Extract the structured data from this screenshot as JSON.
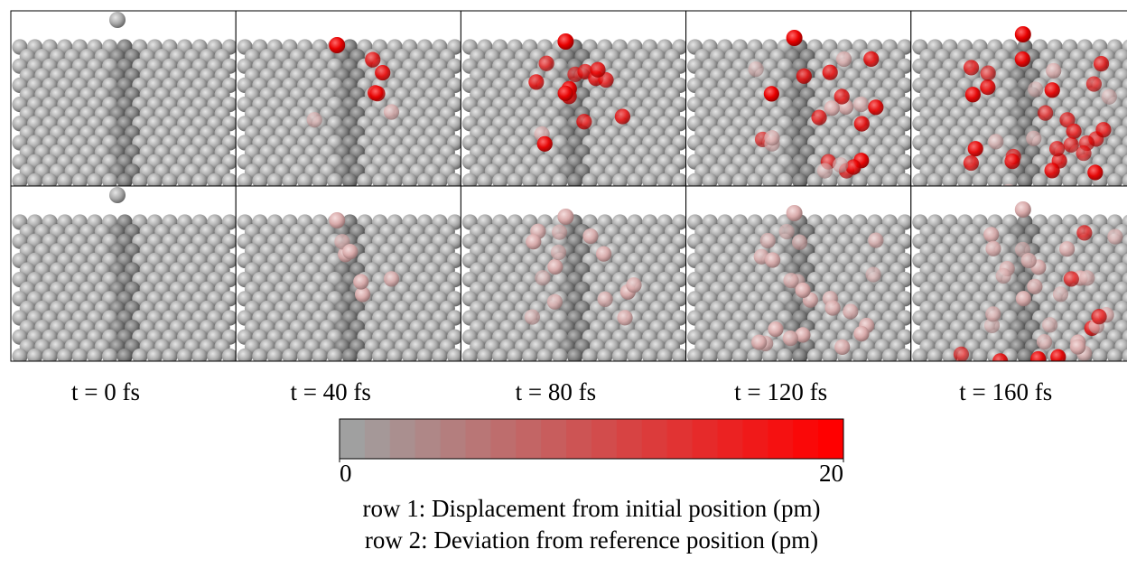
{
  "time_labels": [
    "t = 0 fs",
    "t = 40 fs",
    "t = 80 fs",
    "t = 120 fs",
    "t = 160 fs"
  ],
  "colorbar": {
    "min": 0,
    "max": 20
  },
  "captions": [
    "row 1: Displacement from initial position (pm)",
    "row 2: Deviation from reference position  (pm)"
  ]
}
